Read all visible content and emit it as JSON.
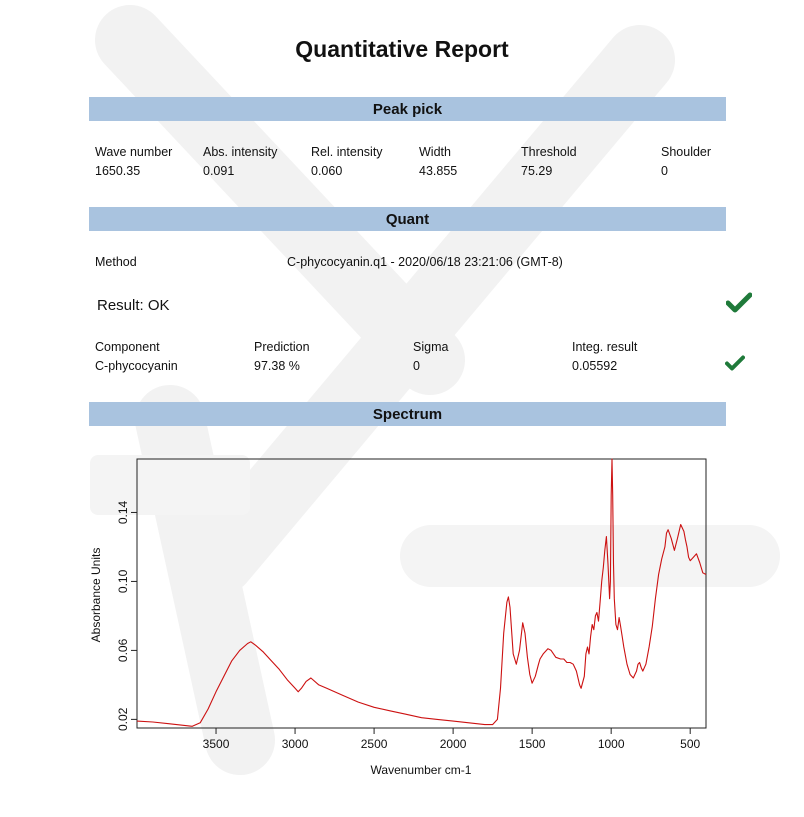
{
  "report": {
    "title": "Quantitative Report"
  },
  "peak_pick": {
    "heading": "Peak pick",
    "headers": [
      "Wave number",
      "Abs. intensity",
      "Rel. intensity",
      "Width",
      "Threshold",
      "Shoulder"
    ],
    "values": [
      "1650.35",
      "0.091",
      "0.060",
      "43.855",
      "75.29",
      "0"
    ]
  },
  "quant": {
    "heading": "Quant",
    "method_label": "Method",
    "method_value": "C-phycocyanin.q1 - 2020/06/18 23:21:06 (GMT-8)",
    "result_text": "Result: OK",
    "headers": [
      "Component",
      "Prediction",
      "Sigma",
      "Integ. result"
    ],
    "values": [
      "C-phycocyanin",
      "97.38 %",
      "0",
      "0.05592"
    ],
    "check_color": "#1f7a3a"
  },
  "spectrum": {
    "heading": "Spectrum"
  },
  "chart_data": {
    "type": "line",
    "xlabel": "Wavenumber cm-1",
    "ylabel": "Absorbance Units",
    "x_ticks": [
      3500,
      3000,
      2500,
      2000,
      1500,
      1000,
      500
    ],
    "y_ticks": [
      "0.02",
      "0.06",
      "0.10",
      "0.14"
    ],
    "xlim": [
      4000,
      400
    ],
    "ylim": [
      0.015,
      0.171
    ],
    "line_color": "#cc1111",
    "series": [
      {
        "x": [
          4000,
          3900,
          3800,
          3700,
          3650,
          3600,
          3550,
          3500,
          3450,
          3400,
          3350,
          3300,
          3280,
          3250,
          3200,
          3150,
          3100,
          3050,
          3000,
          2980,
          2960,
          2930,
          2900,
          2850,
          2800,
          2700,
          2600,
          2500,
          2400,
          2300,
          2200,
          2100,
          2000,
          1900,
          1800,
          1750,
          1720,
          1700,
          1680,
          1660,
          1650,
          1640,
          1620,
          1600,
          1580,
          1560,
          1545,
          1530,
          1515,
          1500,
          1480,
          1460,
          1450,
          1430,
          1400,
          1380,
          1350,
          1320,
          1300,
          1280,
          1260,
          1240,
          1230,
          1220,
          1210,
          1200,
          1190,
          1170,
          1160,
          1150,
          1140,
          1130,
          1120,
          1110,
          1100,
          1090,
          1080,
          1070,
          1060,
          1050,
          1040,
          1030,
          1020,
          1010,
          1005,
          1000,
          995,
          990,
          985,
          980,
          970,
          960,
          950,
          940,
          930,
          920,
          900,
          880,
          860,
          850,
          840,
          830,
          820,
          810,
          800,
          780,
          760,
          740,
          720,
          700,
          680,
          660,
          650,
          640,
          620,
          600,
          580,
          560,
          540,
          530,
          520,
          510,
          500,
          480,
          460,
          440,
          420,
          400
        ],
        "y": [
          0.019,
          0.0185,
          0.0175,
          0.0165,
          0.016,
          0.018,
          0.026,
          0.036,
          0.045,
          0.054,
          0.06,
          0.064,
          0.065,
          0.063,
          0.059,
          0.054,
          0.049,
          0.043,
          0.038,
          0.036,
          0.038,
          0.042,
          0.044,
          0.04,
          0.038,
          0.034,
          0.03,
          0.027,
          0.025,
          0.023,
          0.021,
          0.02,
          0.019,
          0.018,
          0.017,
          0.017,
          0.02,
          0.038,
          0.07,
          0.088,
          0.091,
          0.085,
          0.058,
          0.052,
          0.06,
          0.076,
          0.07,
          0.056,
          0.046,
          0.041,
          0.045,
          0.052,
          0.055,
          0.058,
          0.061,
          0.06,
          0.056,
          0.055,
          0.055,
          0.053,
          0.053,
          0.052,
          0.05,
          0.048,
          0.044,
          0.04,
          0.038,
          0.045,
          0.058,
          0.062,
          0.058,
          0.068,
          0.075,
          0.072,
          0.08,
          0.082,
          0.077,
          0.088,
          0.1,
          0.108,
          0.118,
          0.126,
          0.11,
          0.09,
          0.1,
          0.15,
          0.171,
          0.15,
          0.11,
          0.09,
          0.075,
          0.072,
          0.079,
          0.074,
          0.068,
          0.062,
          0.052,
          0.046,
          0.044,
          0.046,
          0.048,
          0.052,
          0.053,
          0.05,
          0.048,
          0.052,
          0.062,
          0.074,
          0.09,
          0.104,
          0.113,
          0.12,
          0.128,
          0.13,
          0.125,
          0.118,
          0.125,
          0.133,
          0.129,
          0.124,
          0.12,
          0.114,
          0.112,
          0.114,
          0.116,
          0.111,
          0.105,
          0.104
        ]
      }
    ]
  }
}
